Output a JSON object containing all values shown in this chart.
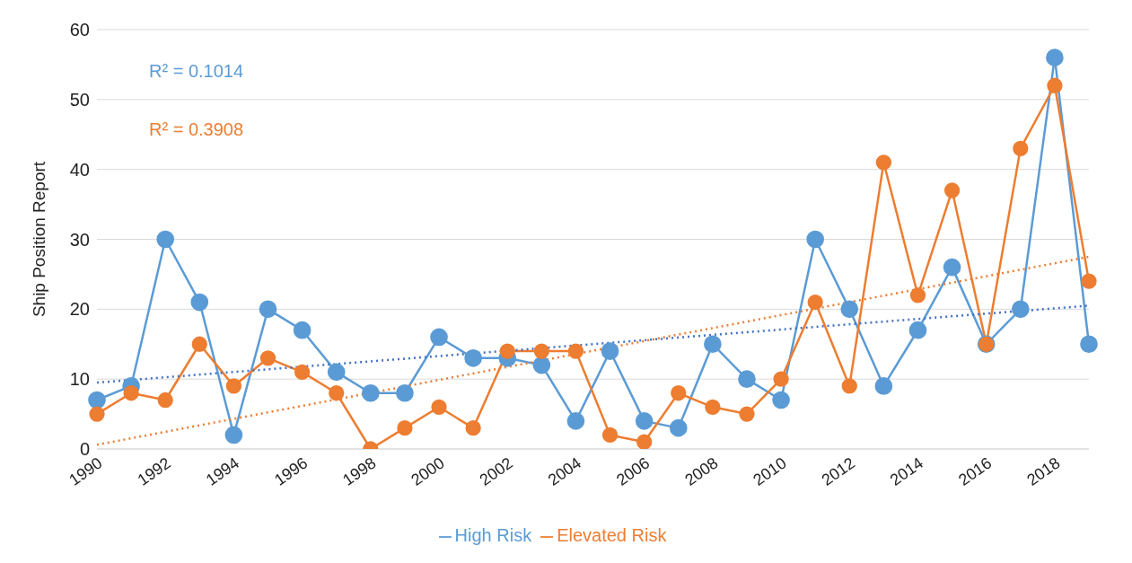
{
  "chart_data": {
    "type": "line",
    "ylabel": "Ship Position Report",
    "ylim": [
      0,
      60
    ],
    "yticks": [
      0,
      10,
      20,
      30,
      40,
      50,
      60
    ],
    "grid": "y",
    "legend": "bottom",
    "marker": "circle",
    "line_style": "solid",
    "categories": [
      "1990",
      null,
      "1992",
      null,
      "1994",
      null,
      "1996",
      null,
      "1998",
      null,
      "2000",
      null,
      "2002",
      null,
      "2004",
      null,
      "2006",
      null,
      "2008",
      null,
      "2010",
      null,
      "2012",
      null,
      "2014",
      null,
      "2016",
      null,
      "2018",
      null
    ],
    "series": [
      {
        "name": "High Risk",
        "color": "#5b9bd5",
        "values": [
          7,
          9,
          30,
          21,
          2,
          20,
          17,
          11,
          8,
          8,
          16,
          13,
          13,
          12,
          4,
          14,
          4,
          3,
          15,
          10,
          7,
          30,
          20,
          9,
          17,
          26,
          15,
          20,
          56,
          15
        ]
      },
      {
        "name": "Elevated Risk",
        "color": "#ed7d31",
        "values": [
          5,
          8,
          7,
          15,
          9,
          13,
          11,
          8,
          0,
          3,
          6,
          3,
          14,
          14,
          14,
          2,
          1,
          8,
          6,
          5,
          10,
          21,
          9,
          41,
          22,
          37,
          15,
          43,
          52,
          24
        ]
      },
      {
        "type": "line",
        "color": "#4472c4",
        "marker": "none",
        "line_style": "dotted",
        "values": [
          9.5,
          null,
          null,
          null,
          null,
          null,
          null,
          null,
          null,
          null,
          null,
          null,
          null,
          null,
          null,
          null,
          null,
          null,
          null,
          null,
          null,
          null,
          null,
          null,
          null,
          null,
          null,
          null,
          null,
          20.5
        ]
      },
      {
        "type": "line",
        "color": "#ed7d31",
        "marker": "none",
        "line_style": "dotted",
        "values": [
          0.6,
          null,
          null,
          null,
          null,
          null,
          null,
          null,
          null,
          null,
          null,
          null,
          null,
          null,
          null,
          null,
          null,
          null,
          null,
          null,
          null,
          null,
          null,
          null,
          null,
          null,
          null,
          null,
          null,
          27.5
        ]
      }
    ],
    "annotations": [
      "R² = 0.1014",
      "R² = 0.3908"
    ]
  }
}
